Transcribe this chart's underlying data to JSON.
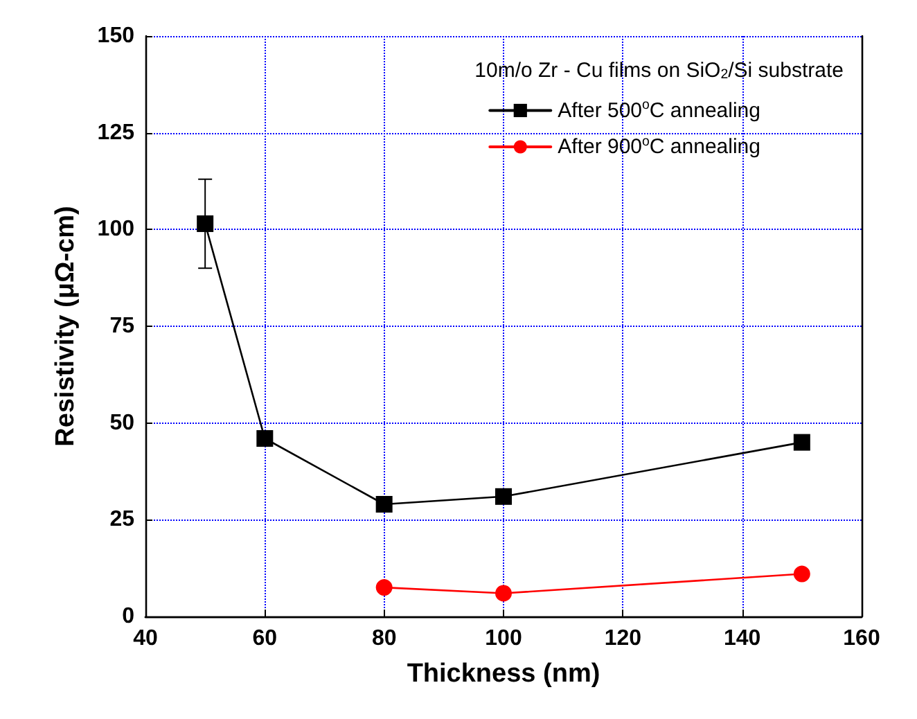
{
  "chart_data": {
    "type": "line",
    "xlabel": "Thickness (nm)",
    "ylabel": "Resistivity (μΩ-cm)",
    "legend_title": "10m/o Zr - Cu films on SiO$_{2}$/Si substrate",
    "xlim": [
      40,
      160
    ],
    "xticks": [
      40,
      60,
      80,
      100,
      120,
      140,
      160
    ],
    "ylim": [
      0,
      150
    ],
    "yticks": [
      0,
      25,
      50,
      75,
      100,
      125,
      150
    ],
    "grid": true,
    "legend": "top right",
    "line_style": "solid",
    "series": [
      {
        "name": "After 500$^{o}$C annealing",
        "color": "#000000",
        "marker": "square",
        "x": [
          50,
          60,
          80,
          100,
          150
        ],
        "values": [
          101.5,
          46,
          29,
          31,
          45
        ],
        "errors": [
          [
            90,
            113
          ],
          null,
          null,
          null,
          null
        ]
      },
      {
        "name": "After 900$^{o}$C annealing",
        "color": "#ff0000",
        "marker": "circle",
        "x": [
          80,
          100,
          150
        ],
        "values": [
          7.5,
          6,
          11
        ]
      }
    ]
  }
}
